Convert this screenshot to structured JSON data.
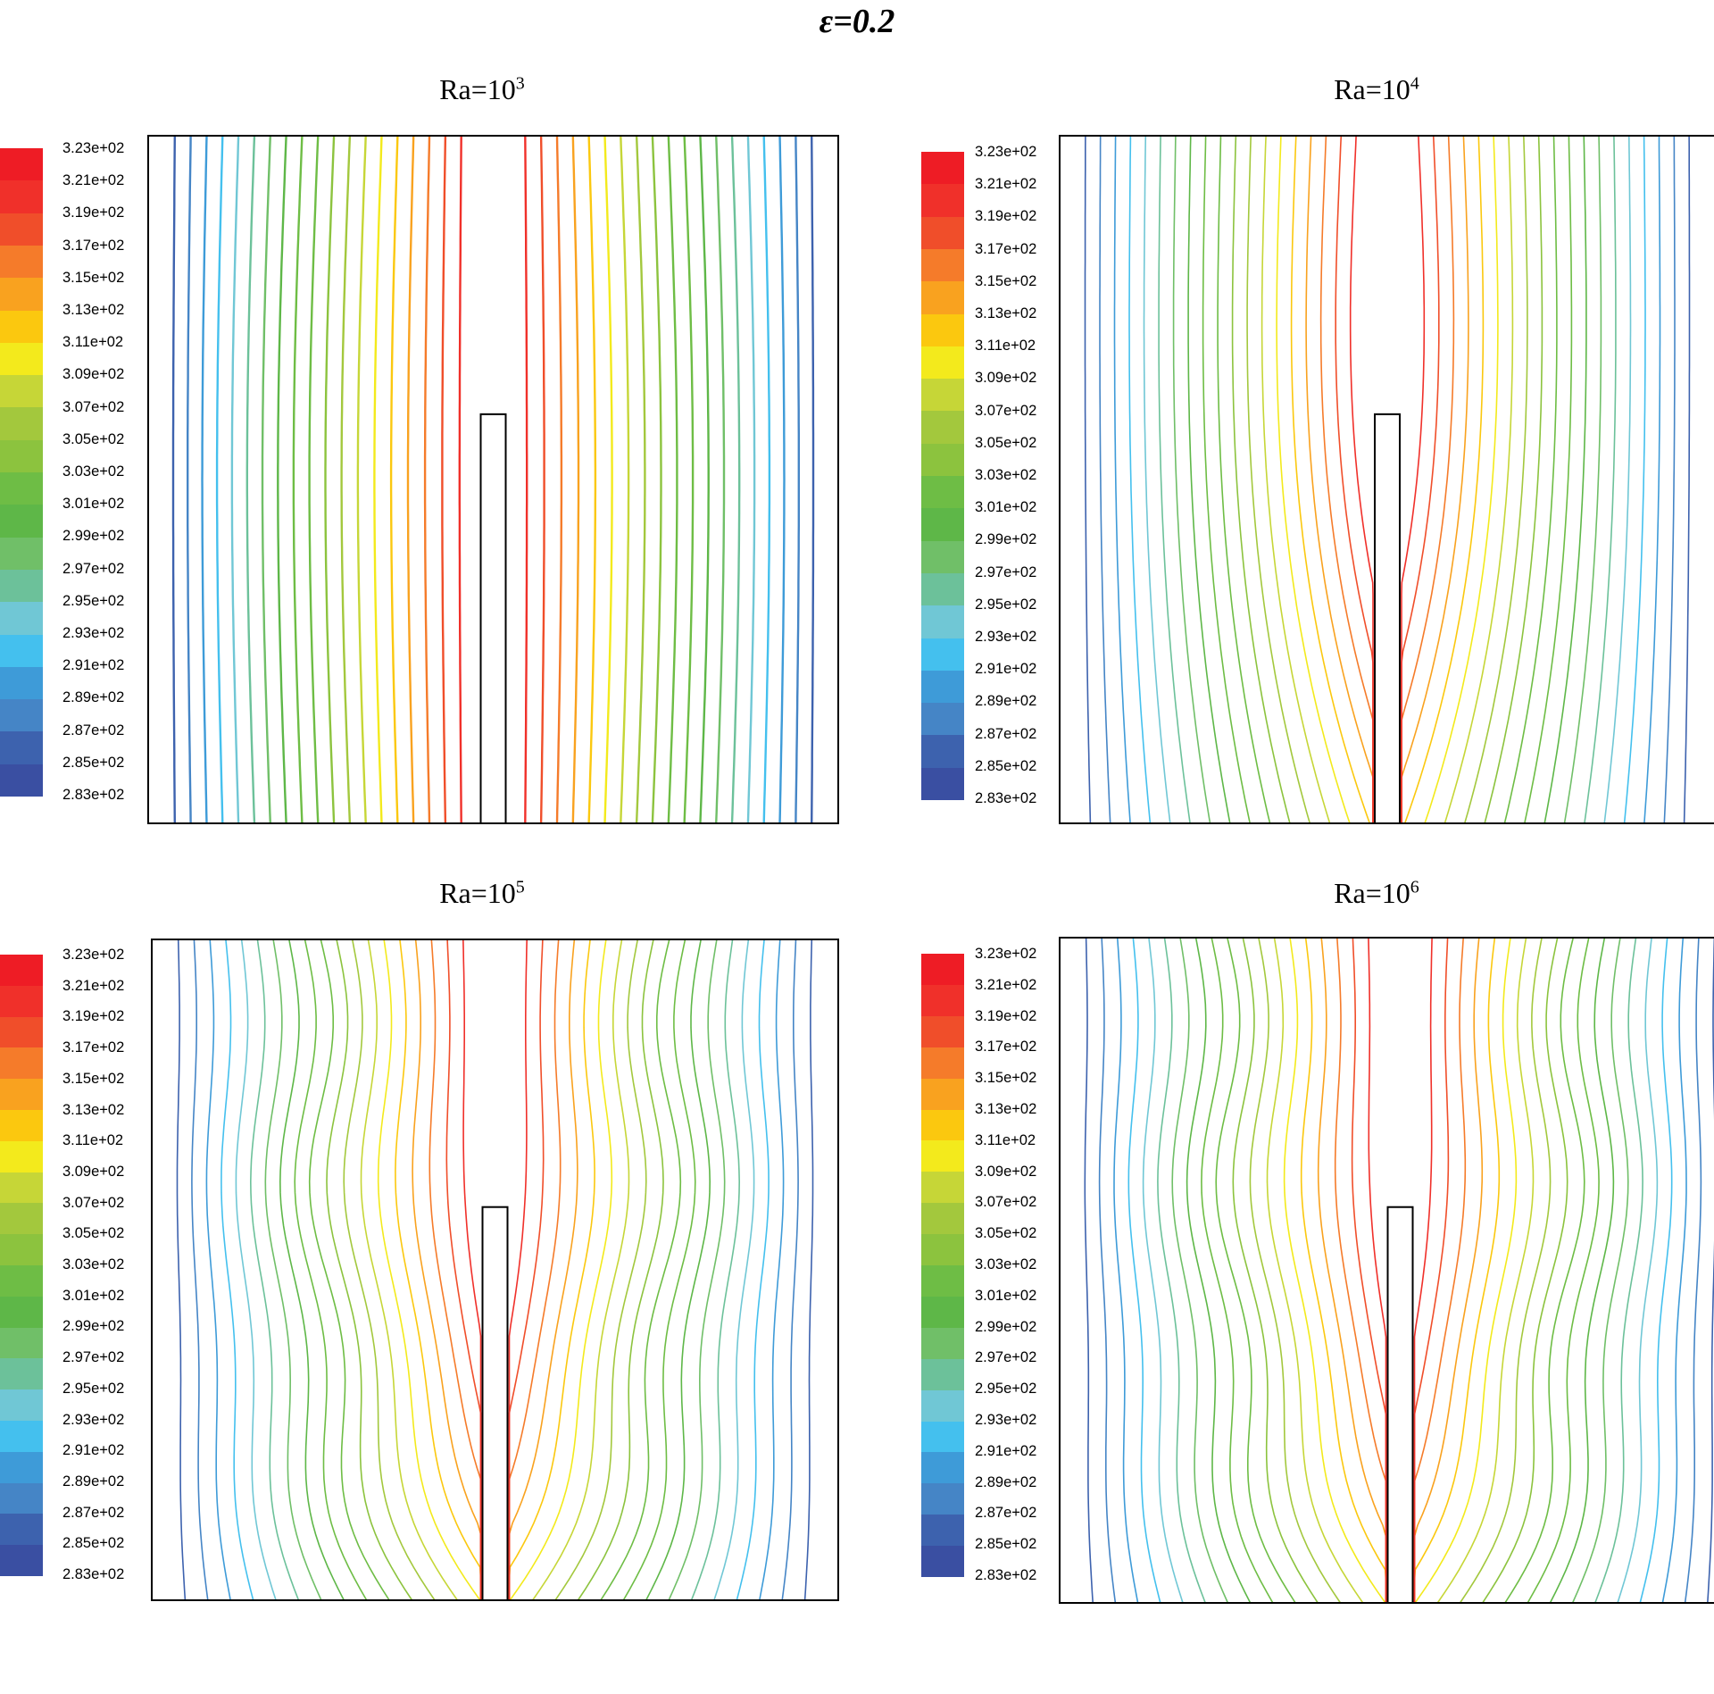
{
  "figure": {
    "title": "ε=0.2"
  },
  "colormap": {
    "labels": [
      "3.23e+02",
      "3.21e+02",
      "3.19e+02",
      "3.17e+02",
      "3.15e+02",
      "3.13e+02",
      "3.11e+02",
      "3.09e+02",
      "3.07e+02",
      "3.05e+02",
      "3.03e+02",
      "3.01e+02",
      "2.99e+02",
      "2.97e+02",
      "2.95e+02",
      "2.93e+02",
      "2.91e+02",
      "2.89e+02",
      "2.87e+02",
      "2.85e+02",
      "2.83e+02"
    ],
    "colors": [
      "#ee1c25",
      "#f0302a",
      "#f04e2a",
      "#f57b2a",
      "#f9a21f",
      "#fbc80f",
      "#f3ea1c",
      "#c6d637",
      "#a3c83d",
      "#8cc33e",
      "#6ebd45",
      "#5eb748",
      "#70bf68",
      "#6cc19a",
      "#70c7d5",
      "#44c0ee",
      "#3e9bd8",
      "#4585c6",
      "#3d62ae",
      "#3a4fa2"
    ]
  },
  "chart_data": [
    {
      "type": "contour",
      "title_base": "Ra=10",
      "title_exp": "3",
      "levels": [
        283,
        285,
        287,
        289,
        291,
        293,
        295,
        297,
        299,
        301,
        303,
        305,
        307,
        309,
        311,
        313,
        315,
        317,
        319,
        321,
        323
      ],
      "legend": "left colorbar"
    },
    {
      "type": "contour",
      "title_base": "Ra=10",
      "title_exp": "4",
      "levels": [
        283,
        285,
        287,
        289,
        291,
        293,
        295,
        297,
        299,
        301,
        303,
        305,
        307,
        309,
        311,
        313,
        315,
        317,
        319,
        321,
        323
      ],
      "legend": "left colorbar"
    },
    {
      "type": "contour",
      "title_base": "Ra=10",
      "title_exp": "5",
      "levels": [
        283,
        285,
        287,
        289,
        291,
        293,
        295,
        297,
        299,
        301,
        303,
        305,
        307,
        309,
        311,
        313,
        315,
        317,
        319,
        321,
        323
      ],
      "legend": "left colorbar"
    },
    {
      "type": "contour",
      "title_base": "Ra=10",
      "title_exp": "6",
      "levels": [
        283,
        285,
        287,
        289,
        291,
        293,
        295,
        297,
        299,
        301,
        303,
        305,
        307,
        309,
        311,
        313,
        315,
        317,
        319,
        321,
        323
      ],
      "legend": "left colorbar"
    }
  ]
}
